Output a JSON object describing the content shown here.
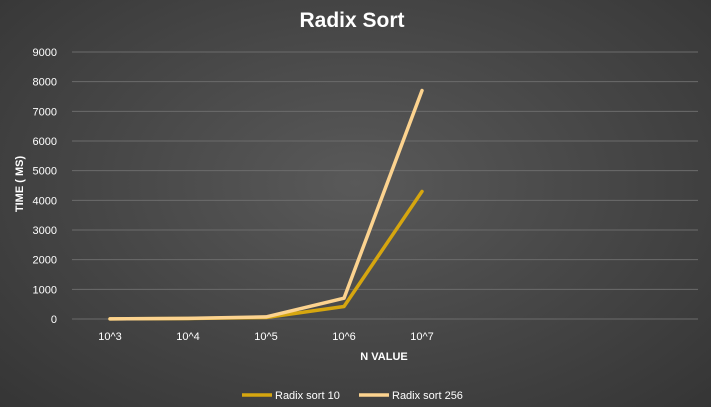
{
  "chart_data": {
    "type": "line",
    "title": "Radix Sort",
    "xlabel": "N VALUE",
    "ylabel": "TIME ( MS)",
    "categories": [
      "10^3",
      "10^4",
      "10^5",
      "10^6",
      "10^7"
    ],
    "ylim": [
      0,
      9000
    ],
    "yticks": [
      "0",
      "1000",
      "2000",
      "3000",
      "4000",
      "5000",
      "6000",
      "7000",
      "8000",
      "9000"
    ],
    "grid": true,
    "legend_position": "bottom",
    "series": [
      {
        "name": "Radix sort 10",
        "values": [
          5,
          15,
          50,
          420,
          4300
        ],
        "color": "#d6a60f"
      },
      {
        "name": "Radix sort 256",
        "values": [
          5,
          20,
          70,
          700,
          7700
        ],
        "color": "#fcd38f"
      }
    ]
  }
}
